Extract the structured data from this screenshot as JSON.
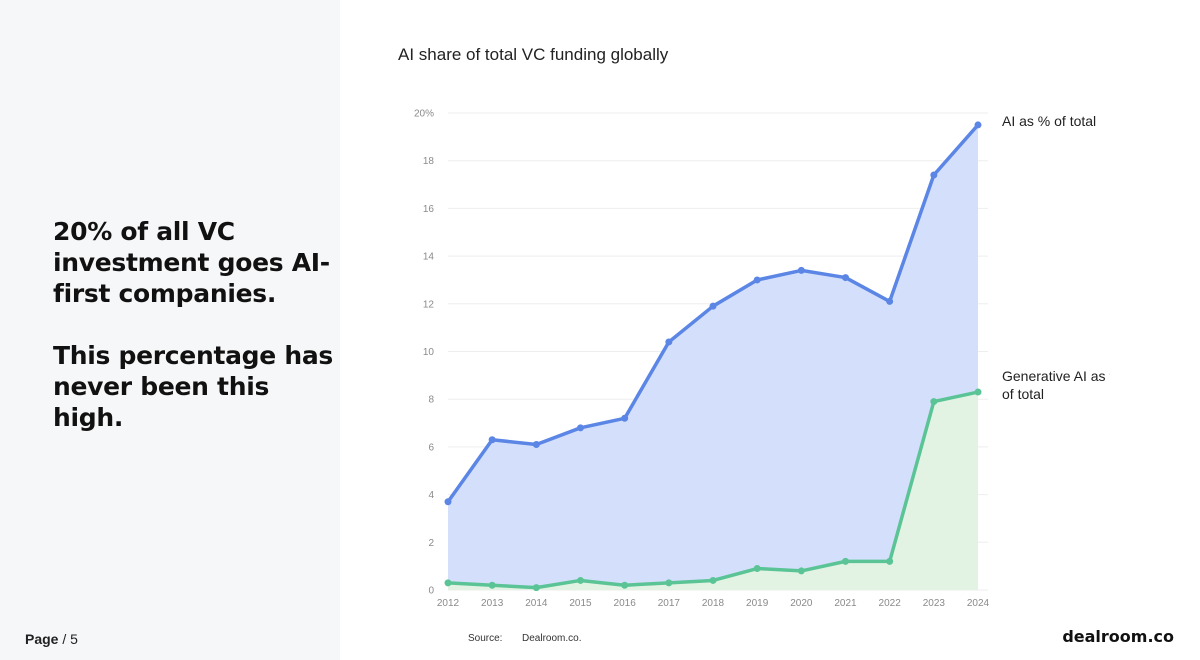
{
  "headline": {
    "line1": "20% of all VC investment goes AI-first companies.",
    "line2": "This percentage has never been this high."
  },
  "footer": {
    "page_word": "Page",
    "page_number": "/ 5",
    "source_label": "Source:",
    "source_value": "Dealroom.co.",
    "brand": "dealroom.co"
  },
  "colors": {
    "ai_line": "#5b86e5",
    "ai_fill": "#d4e0fb",
    "genai_line": "#5bc496",
    "genai_fill": "#e3f3e3",
    "gridline": "#eeeeee"
  },
  "chart_data": {
    "type": "area",
    "title": "AI share of total VC funding globally",
    "x": [
      "2012",
      "2013",
      "2014",
      "2015",
      "2016",
      "2017",
      "2018",
      "2019",
      "2020",
      "2021",
      "2022",
      "2023",
      "2024"
    ],
    "series": [
      {
        "name": "AI as % of total",
        "values": [
          3.7,
          6.3,
          6.1,
          6.8,
          7.2,
          10.4,
          11.9,
          13.0,
          13.4,
          13.1,
          12.1,
          17.4,
          19.5
        ]
      },
      {
        "name": "Generative AI as % of total",
        "values": [
          0.3,
          0.2,
          0.1,
          0.4,
          0.2,
          0.3,
          0.4,
          0.9,
          0.8,
          1.2,
          1.2,
          7.9,
          8.3
        ]
      }
    ],
    "yticks": [
      "0",
      "2",
      "4",
      "6",
      "8",
      "10",
      "12",
      "14",
      "16",
      "18",
      "20%"
    ],
    "ylim": [
      0,
      20
    ],
    "grid": true,
    "legend": "inline-right"
  }
}
